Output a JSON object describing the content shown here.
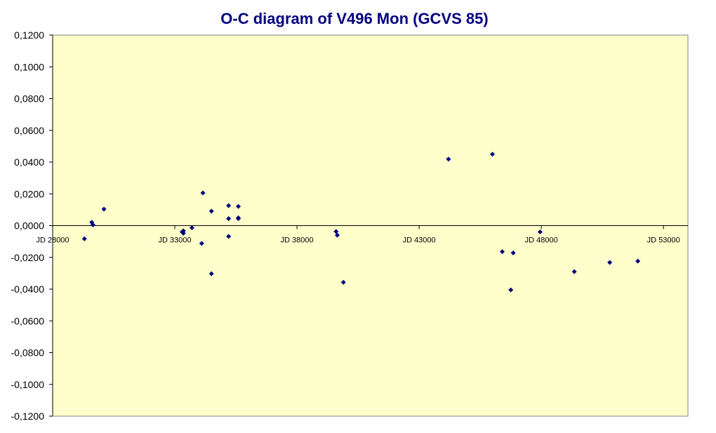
{
  "chart_data": {
    "type": "scatter",
    "title": "O-C diagram of V496 Mon  (GCVS 85)",
    "xlabel": "",
    "ylabel": "",
    "xlim": [
      28000,
      54000
    ],
    "ylim": [
      -0.12,
      0.12
    ],
    "x_ticks": [
      28000,
      33000,
      38000,
      43000,
      48000,
      53000
    ],
    "x_tick_labels": [
      "JD 28000",
      "JD 33000",
      "JD 38000",
      "JD 43000",
      "JD 48000",
      "JD 53000"
    ],
    "y_ticks": [
      0.12,
      0.1,
      0.08,
      0.06,
      0.04,
      0.02,
      0.0,
      -0.02,
      -0.04,
      -0.06,
      -0.08,
      -0.1,
      -0.12
    ],
    "y_tick_labels": [
      "0,1200",
      "0,1000",
      "0,0800",
      "0,0600",
      "0,0400",
      "0,0200",
      "0,0000",
      "-0,0200",
      "-0,0400",
      "-0,0600",
      "-0,0800",
      "-0,1000",
      "-0,1200"
    ],
    "grid": false,
    "legend": "none",
    "colors": {
      "plot_background": "#FFFFCC",
      "marker": "#000080",
      "title": "#000080"
    },
    "series": [
      {
        "points": [
          [
            29300,
            -0.0083
          ],
          [
            29600,
            0.0021
          ],
          [
            29650,
            0.0005
          ],
          [
            30100,
            0.0104
          ],
          [
            33300,
            -0.004
          ],
          [
            33350,
            -0.0048
          ],
          [
            33350,
            -0.0033
          ],
          [
            33700,
            -0.0013
          ],
          [
            34100,
            -0.0112
          ],
          [
            34150,
            0.0206
          ],
          [
            34500,
            0.0091
          ],
          [
            34500,
            -0.0303
          ],
          [
            35200,
            0.0126
          ],
          [
            35200,
            0.0044
          ],
          [
            35200,
            -0.0068
          ],
          [
            35600,
            0.0121
          ],
          [
            35600,
            0.0049
          ],
          [
            35600,
            0.0044
          ],
          [
            39600,
            -0.0037
          ],
          [
            39650,
            -0.006
          ],
          [
            39900,
            -0.0357
          ],
          [
            44200,
            0.0419
          ],
          [
            46000,
            0.045
          ],
          [
            46400,
            -0.0164
          ],
          [
            46750,
            -0.0405
          ],
          [
            46850,
            -0.0172
          ],
          [
            47950,
            -0.004
          ],
          [
            49350,
            -0.029
          ],
          [
            50800,
            -0.0232
          ],
          [
            51950,
            -0.0224
          ]
        ]
      }
    ]
  }
}
